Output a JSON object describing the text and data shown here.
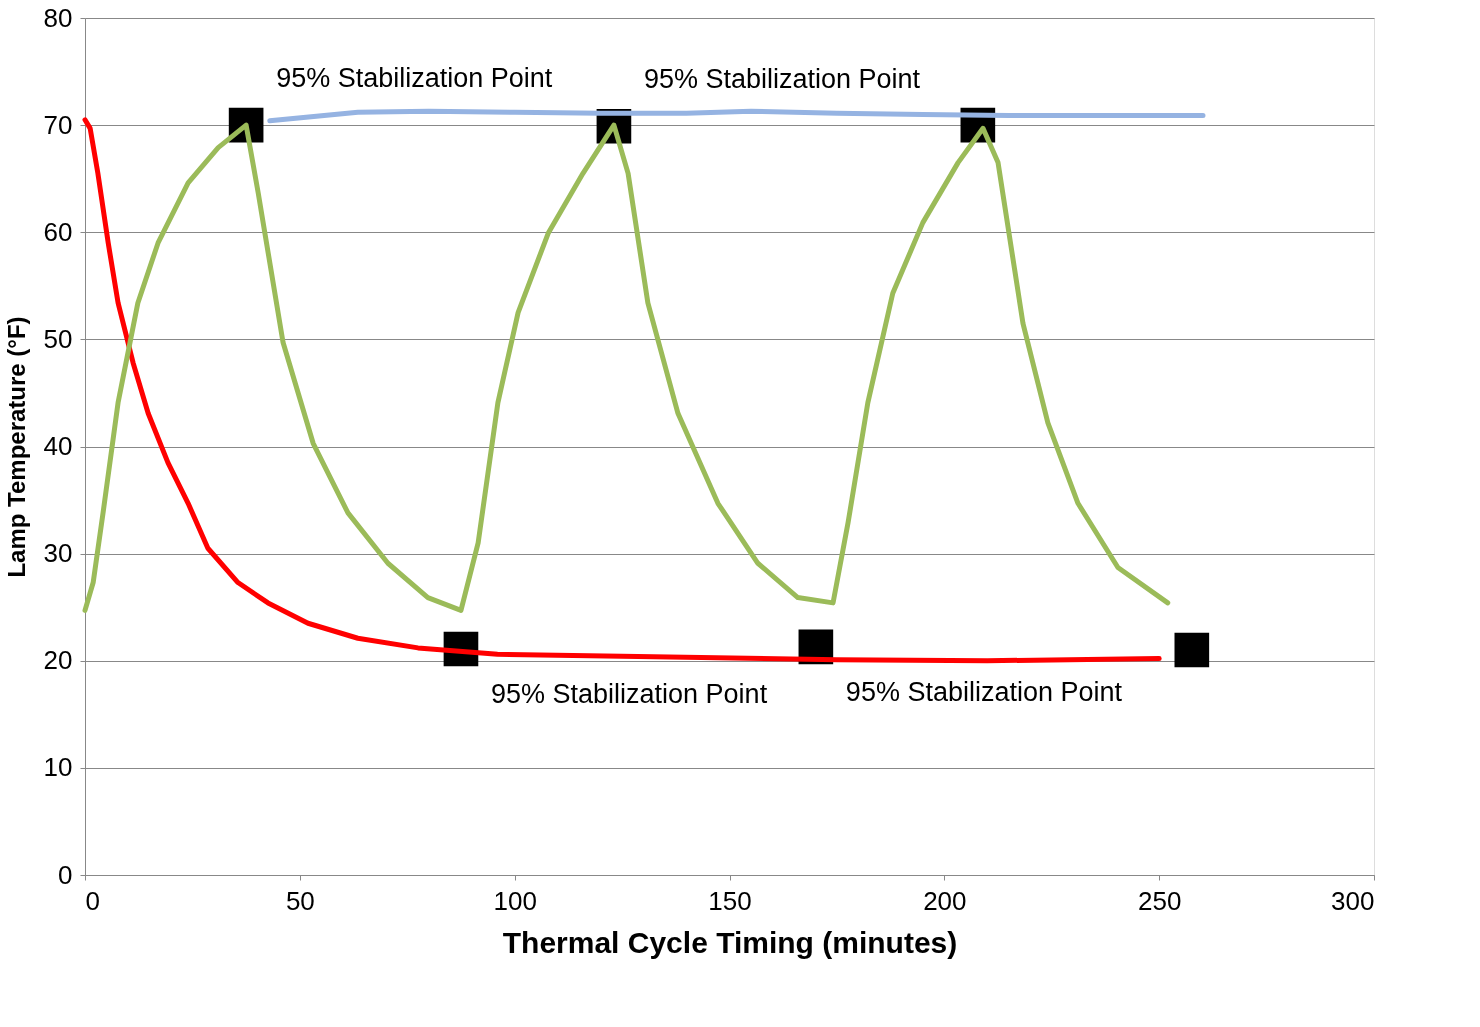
{
  "chart_data": {
    "type": "line",
    "xlabel": "Thermal Cycle Timing (minutes)",
    "ylabel": "Lamp Temperature (°F)",
    "xlim": [
      0,
      300
    ],
    "xticks": [
      0,
      50,
      100,
      150,
      200,
      250,
      300
    ],
    "ylim": [
      0,
      80
    ],
    "yticks": [
      0,
      10,
      20,
      30,
      40,
      50,
      60,
      70,
      80
    ],
    "grid": "y",
    "line_style": "solid",
    "series": [
      {
        "type": "line",
        "color": "#95b3e2",
        "marker": "none",
        "x": [
          43,
          63.5,
          80,
          100,
          120,
          140,
          155,
          175,
          195,
          215,
          235,
          260.2
        ],
        "values": [
          70.4,
          71.2,
          71.3,
          71.2,
          71.1,
          71.1,
          71.3,
          71.1,
          71.0,
          70.9,
          70.9,
          70.9
        ]
      },
      {
        "type": "line",
        "color": "#ff0000",
        "marker": "none",
        "x": [
          0,
          1.2,
          3,
          5.4,
          7.7,
          11.2,
          14.7,
          19.3,
          24,
          28.6,
          35.6,
          42.6,
          51.9,
          63.5,
          77.5,
          96,
          128.7,
          175,
          210,
          250
        ],
        "values": [
          70.5,
          69.7,
          65.5,
          59,
          53.4,
          47.8,
          43.1,
          38.5,
          34.7,
          30.5,
          27.3,
          25.4,
          23.5,
          22.1,
          21.2,
          20.6,
          20.4,
          20.1,
          20.0,
          20.2
        ]
      },
      {
        "type": "line",
        "color": "#9bbb59",
        "marker": "none",
        "x": [
          0,
          1.9,
          4.2,
          7.7,
          12.3,
          17,
          24,
          31,
          37.5,
          40.3,
          46.1,
          53.1,
          61.2,
          70.5,
          79.8,
          87.5,
          91.5,
          96.1,
          100.8,
          107.8,
          115.9,
          123.1,
          126.4,
          131,
          138,
          147.3,
          156.6,
          165.9,
          174.1,
          177.6,
          182.2,
          188,
          195,
          203.2,
          209,
          212.5,
          218.3,
          224.1,
          231.1,
          240.4,
          252
        ],
        "values": [
          24.7,
          27.3,
          33.8,
          44.1,
          53.4,
          59,
          64.6,
          67.9,
          70.0,
          63.7,
          49.7,
          40.3,
          33.8,
          29.1,
          25.9,
          24.7,
          31,
          44.1,
          52.5,
          59.9,
          65.5,
          70.0,
          65.5,
          53.4,
          43.1,
          34.7,
          29.1,
          25.9,
          25.4,
          32.9,
          44.1,
          54.3,
          60.9,
          66.5,
          69.7,
          66.5,
          51.5,
          42.2,
          34.7,
          28.7,
          25.4
        ]
      },
      {
        "type": "scatter",
        "color": "#000000",
        "marker": "square",
        "x": [
          37.5,
          123.1,
          207.8,
          87.5,
          170.1,
          257.6
        ],
        "values": [
          70.0,
          69.9,
          70.0,
          21.1,
          21.3,
          21.0
        ]
      }
    ],
    "annotations": [
      "95% Stabilization Point",
      "95% Stabilization Point",
      "95% Stabilization Point",
      "95% Stabilization Point"
    ]
  }
}
